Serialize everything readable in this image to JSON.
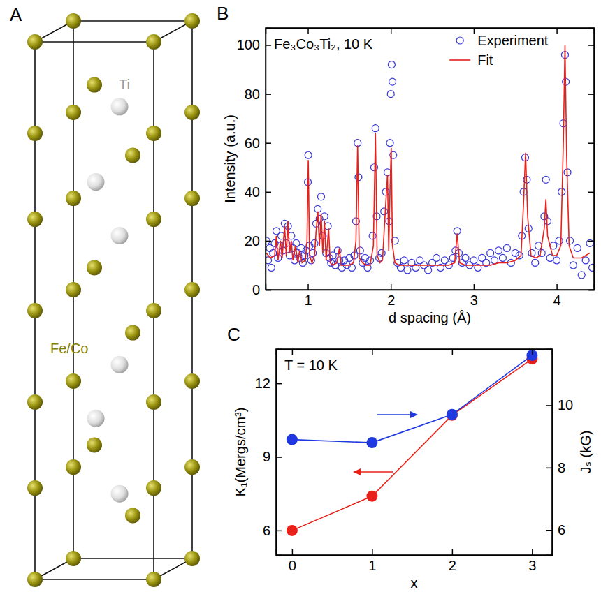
{
  "chart_data": [
    {
      "type": "diagram",
      "panel_label": "A",
      "labels": [
        "Ti",
        "Fe/Co"
      ]
    },
    {
      "type": "line",
      "panel_label": "B",
      "annotation": "Fe₃Co₃Ti₂, 10 K",
      "xlabel": "d spacing (Å)",
      "ylabel": "Intensity (a.u.)",
      "xlim": [
        0.49,
        4.45
      ],
      "xticks": [
        1,
        2,
        3,
        4
      ],
      "ylim": [
        0,
        107
      ],
      "yticks": [
        0,
        20,
        40,
        60,
        80,
        100
      ],
      "legend": "top",
      "series": [
        {
          "name": "Experiment",
          "type": "scatter",
          "marker": "open-circle",
          "color": "#3a3ad8",
          "x": [
            0.5,
            0.52,
            0.54,
            0.56,
            0.58,
            0.6,
            0.62,
            0.64,
            0.66,
            0.68,
            0.7,
            0.72,
            0.74,
            0.76,
            0.78,
            0.8,
            0.82,
            0.84,
            0.86,
            0.88,
            0.9,
            0.92,
            0.94,
            0.96,
            0.98,
            1.0,
            1.005,
            1.02,
            1.04,
            1.06,
            1.08,
            1.1,
            1.12,
            1.14,
            1.16,
            1.18,
            1.2,
            1.22,
            1.24,
            1.26,
            1.28,
            1.3,
            1.33,
            1.36,
            1.38,
            1.41,
            1.44,
            1.47,
            1.5,
            1.53,
            1.56,
            1.58,
            1.6,
            1.61,
            1.63,
            1.66,
            1.69,
            1.72,
            1.75,
            1.78,
            1.8,
            1.815,
            1.83,
            1.86,
            1.89,
            1.92,
            1.94,
            1.96,
            1.98,
            1.99,
            2.0,
            2.01,
            2.02,
            2.03,
            2.05,
            2.08,
            2.12,
            2.16,
            2.2,
            2.25,
            2.3,
            2.35,
            2.4,
            2.45,
            2.5,
            2.55,
            2.6,
            2.65,
            2.7,
            2.75,
            2.78,
            2.8,
            2.82,
            2.86,
            2.9,
            2.95,
            3.0,
            3.05,
            3.1,
            3.15,
            3.2,
            3.25,
            3.3,
            3.35,
            3.4,
            3.45,
            3.5,
            3.55,
            3.58,
            3.6,
            3.62,
            3.64,
            3.66,
            3.7,
            3.74,
            3.78,
            3.82,
            3.85,
            3.87,
            3.89,
            3.92,
            3.96,
            4.0,
            4.03,
            4.06,
            4.08,
            4.1,
            4.11,
            4.13,
            4.16,
            4.2,
            4.25,
            4.3,
            4.35,
            4.4,
            4.43
          ],
          "values": [
            20,
            12,
            17,
            9,
            15,
            19,
            24,
            13,
            18,
            22,
            16,
            27,
            19,
            26,
            14,
            22,
            17,
            12,
            19,
            15,
            13,
            17,
            11,
            14,
            16,
            44,
            55,
            18,
            12,
            15,
            19,
            27,
            33,
            29,
            38,
            22,
            30,
            15,
            26,
            13,
            11,
            14,
            10,
            16,
            12,
            9,
            12,
            10,
            13,
            9,
            14,
            28,
            60,
            46,
            16,
            11,
            13,
            9,
            12,
            22,
            50,
            66,
            30,
            13,
            15,
            32,
            40,
            48,
            28,
            60,
            80,
            92,
            85,
            55,
            20,
            11,
            9,
            12,
            8,
            11,
            9,
            12,
            10,
            8,
            11,
            13,
            9,
            12,
            10,
            13,
            16,
            24,
            15,
            11,
            13,
            10,
            12,
            9,
            13,
            11,
            15,
            12,
            16,
            13,
            17,
            11,
            15,
            14,
            22,
            40,
            54,
            45,
            25,
            15,
            11,
            18,
            15,
            30,
            45,
            28,
            13,
            18,
            12,
            20,
            40,
            68,
            96,
            85,
            48,
            20,
            10,
            17,
            6,
            12,
            19,
            9
          ]
        },
        {
          "name": "Fit",
          "type": "line",
          "color": "#e8201c",
          "x": [
            0.5,
            0.55,
            0.6,
            0.62,
            0.64,
            0.67,
            0.69,
            0.72,
            0.74,
            0.76,
            0.78,
            0.8,
            0.82,
            0.85,
            0.88,
            0.9,
            0.93,
            0.97,
            0.99,
            1.005,
            1.02,
            1.05,
            1.08,
            1.1,
            1.12,
            1.14,
            1.16,
            1.18,
            1.2,
            1.22,
            1.25,
            1.27,
            1.3,
            1.35,
            1.38,
            1.4,
            1.45,
            1.5,
            1.55,
            1.58,
            1.6,
            1.62,
            1.66,
            1.7,
            1.75,
            1.79,
            1.815,
            1.835,
            1.87,
            1.9,
            1.93,
            1.96,
            1.975,
            1.99,
            2.005,
            2.02,
            2.05,
            2.1,
            2.2,
            2.3,
            2.4,
            2.5,
            2.6,
            2.7,
            2.77,
            2.8,
            2.83,
            2.9,
            3.0,
            3.1,
            3.2,
            3.3,
            3.4,
            3.5,
            3.57,
            3.6,
            3.625,
            3.65,
            3.69,
            3.75,
            3.8,
            3.85,
            3.87,
            3.89,
            3.95,
            4.0,
            4.05,
            4.08,
            4.1,
            4.12,
            4.15,
            4.2,
            4.3,
            4.4
          ],
          "values": [
            15,
            13,
            14,
            22,
            12,
            20,
            13,
            26,
            14,
            28,
            15,
            20,
            12,
            18,
            11,
            16,
            11,
            12,
            20,
            53,
            14,
            11,
            14,
            24,
            32,
            18,
            31,
            15,
            28,
            12,
            25,
            11,
            10,
            11,
            17,
            10,
            10,
            10,
            11,
            20,
            59,
            13,
            11,
            10,
            10,
            18,
            64,
            14,
            11,
            12,
            30,
            47,
            16,
            40,
            58,
            18,
            11,
            10,
            10,
            10,
            10,
            10,
            10,
            10,
            11,
            23,
            11,
            10,
            10,
            10,
            10,
            11,
            11,
            12,
            14,
            35,
            56,
            30,
            14,
            13,
            14,
            25,
            37,
            22,
            14,
            14,
            18,
            60,
            100,
            55,
            18,
            13,
            13,
            15
          ]
        }
      ]
    },
    {
      "type": "line",
      "panel_label": "C",
      "annotation": "T = 10 K",
      "xlabel": "x",
      "ylabel": "K₁(Mergs/cm³)",
      "y2label": "Jₛ (kG)",
      "x": [
        0,
        1,
        2,
        3
      ],
      "xlim": [
        -0.2,
        3.25
      ],
      "xticks": [
        0,
        1,
        2,
        3
      ],
      "ylim": [
        5,
        13.4
      ],
      "yticks": [
        6,
        9,
        12
      ],
      "y2lim": [
        5.2,
        11.8
      ],
      "y2ticks": [
        6,
        8,
        10
      ],
      "marker": "circle",
      "series": [
        {
          "color": "#e8221b",
          "values": [
            6.0,
            7.4,
            10.7,
            13.0
          ]
        },
        {
          "color": "#1f38e0",
          "axis": "y2",
          "values": [
            8.9,
            8.8,
            9.7,
            11.6
          ]
        }
      ]
    }
  ]
}
